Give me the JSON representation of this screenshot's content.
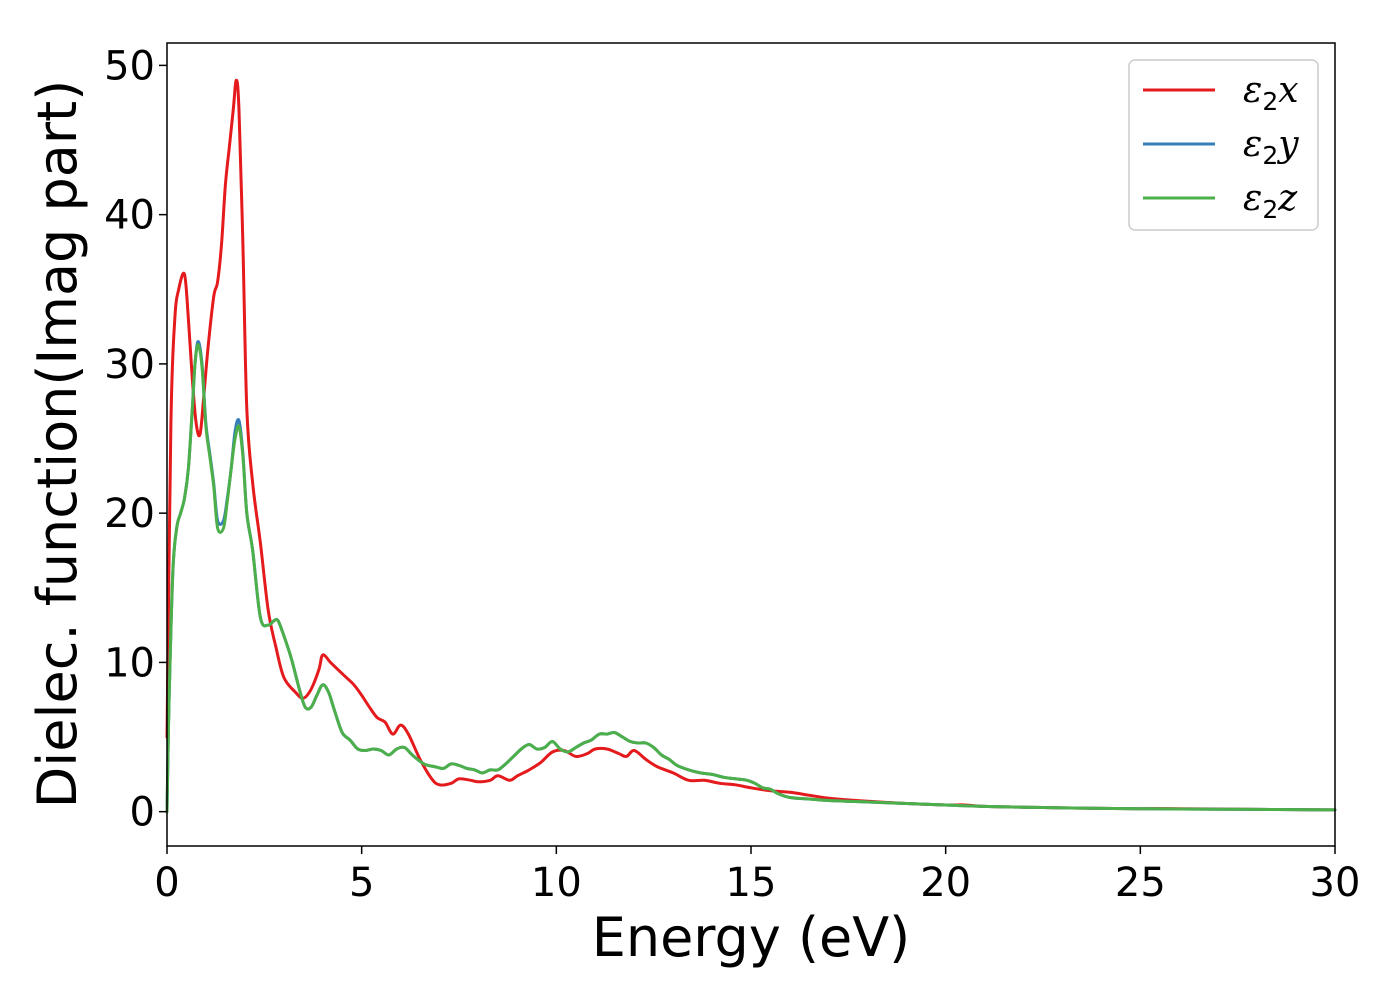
{
  "chart_data": {
    "type": "line",
    "title": "",
    "xlabel": "Energy (eV)",
    "ylabel": "Dielec. function(Imag part)",
    "xlim": [
      0,
      30
    ],
    "ylim": [
      -2.3,
      51.5
    ],
    "xticks": [
      0,
      5,
      10,
      15,
      20,
      25,
      30
    ],
    "xtick_labels": [
      "0",
      "5",
      "10",
      "15",
      "20",
      "25",
      "30"
    ],
    "yticks": [
      0,
      10,
      20,
      30,
      40,
      50
    ],
    "ytick_labels": [
      "0",
      "10",
      "20",
      "30",
      "40",
      "50"
    ],
    "grid": false,
    "legend_position": "top-right",
    "series": [
      {
        "name": "ε2x",
        "name_main": "ε",
        "name_sub": "2",
        "name_tail": "x",
        "color": "#e41a1c",
        "x": [
          0,
          0.1,
          0.2,
          0.3,
          0.45,
          0.55,
          0.65,
          0.75,
          0.85,
          0.95,
          1.05,
          1.2,
          1.3,
          1.4,
          1.5,
          1.6,
          1.7,
          1.78,
          1.85,
          1.95,
          2.05,
          2.2,
          2.4,
          2.6,
          2.8,
          3.0,
          3.3,
          3.5,
          3.7,
          3.9,
          4.0,
          4.2,
          4.4,
          4.6,
          4.8,
          5.0,
          5.2,
          5.4,
          5.6,
          5.8,
          6.0,
          6.2,
          6.5,
          6.8,
          7.0,
          7.3,
          7.5,
          7.8,
          8.0,
          8.3,
          8.5,
          8.8,
          9.0,
          9.3,
          9.6,
          9.9,
          10.2,
          10.5,
          10.8,
          11.0,
          11.3,
          11.6,
          11.8,
          12.0,
          12.3,
          12.6,
          13.0,
          13.4,
          13.8,
          14.2,
          14.6,
          15.0,
          15.5,
          16.0,
          16.5,
          17.0,
          18.0,
          19.0,
          20.0,
          20.5,
          21.0,
          22.0,
          23.0,
          24.0,
          25.0,
          26.0,
          27.0,
          28.0,
          29.0,
          30.0
        ],
        "y": [
          5,
          26,
          33,
          35,
          36,
          33,
          29,
          26,
          25.3,
          28,
          31,
          34.5,
          35.5,
          38,
          42,
          44.5,
          47,
          49,
          47,
          38,
          27,
          22,
          18,
          13.5,
          11,
          9,
          8,
          7.6,
          8.2,
          9.5,
          10.5,
          10,
          9.5,
          9,
          8.5,
          7.8,
          7,
          6.3,
          6,
          5.2,
          5.8,
          5.2,
          3.5,
          2.2,
          1.8,
          1.9,
          2.2,
          2.1,
          2,
          2.1,
          2.4,
          2.1,
          2.4,
          2.8,
          3.3,
          4,
          4.1,
          3.7,
          3.9,
          4.2,
          4.2,
          3.9,
          3.7,
          4.1,
          3.5,
          3,
          2.6,
          2.1,
          2.1,
          1.9,
          1.8,
          1.6,
          1.4,
          1.3,
          1.1,
          0.9,
          0.7,
          0.55,
          0.45,
          0.45,
          0.35,
          0.3,
          0.25,
          0.22,
          0.2,
          0.2,
          0.18,
          0.15,
          0.14,
          0.12
        ]
      },
      {
        "name": "ε2y",
        "name_main": "ε",
        "name_sub": "2",
        "name_tail": "y",
        "color": "#377eb8",
        "x": [
          0,
          0.05,
          0.15,
          0.25,
          0.35,
          0.45,
          0.55,
          0.65,
          0.72,
          0.8,
          0.9,
          1.0,
          1.1,
          1.2,
          1.3,
          1.45,
          1.55,
          1.65,
          1.75,
          1.85,
          1.95,
          2.05,
          2.2,
          2.4,
          2.6,
          2.75,
          2.85,
          3.0,
          3.2,
          3.4,
          3.55,
          3.7,
          3.85,
          4.0,
          4.15,
          4.3,
          4.5,
          4.7,
          4.9,
          5.1,
          5.3,
          5.5,
          5.7,
          5.9,
          6.1,
          6.3,
          6.6,
          6.9,
          7.1,
          7.3,
          7.5,
          7.7,
          7.9,
          8.1,
          8.3,
          8.5,
          8.7,
          8.9,
          9.1,
          9.3,
          9.5,
          9.7,
          9.9,
          10.1,
          10.3,
          10.5,
          10.7,
          10.9,
          11.1,
          11.3,
          11.5,
          11.7,
          11.9,
          12.1,
          12.3,
          12.5,
          12.7,
          12.9,
          13.1,
          13.4,
          13.7,
          14.0,
          14.3,
          14.6,
          14.9,
          15.1,
          15.3,
          15.5,
          15.7,
          16.0,
          16.5,
          17.0,
          18.0,
          19.0,
          20.0,
          21.0,
          22.0,
          23.0,
          24.0,
          25.0,
          26.0,
          27.0,
          28.0,
          29.0,
          30.0
        ],
        "y": [
          0,
          7,
          16,
          19,
          20,
          21,
          23,
          27,
          30,
          31.5,
          30,
          26,
          24,
          22,
          19.5,
          19.5,
          21,
          23,
          25.5,
          26.2,
          24,
          20,
          17.5,
          13,
          12.5,
          12.8,
          12.8,
          11.8,
          10.2,
          8.2,
          7,
          7,
          7.8,
          8.5,
          8,
          6.8,
          5.3,
          4.8,
          4.2,
          4.1,
          4.2,
          4.1,
          3.8,
          4.2,
          4.3,
          3.8,
          3.2,
          3,
          2.9,
          3.2,
          3.1,
          2.9,
          2.8,
          2.6,
          2.8,
          2.8,
          3.2,
          3.7,
          4.2,
          4.5,
          4.2,
          4.3,
          4.7,
          4.2,
          4.0,
          4.3,
          4.6,
          4.8,
          5.2,
          5.2,
          5.3,
          5.0,
          4.7,
          4.6,
          4.6,
          4.3,
          3.8,
          3.5,
          3.1,
          2.8,
          2.6,
          2.5,
          2.3,
          2.2,
          2.1,
          1.9,
          1.6,
          1.5,
          1.2,
          0.95,
          0.85,
          0.75,
          0.65,
          0.55,
          0.45,
          0.35,
          0.3,
          0.25,
          0.22,
          0.2,
          0.18,
          0.16,
          0.15,
          0.14,
          0.12
        ]
      },
      {
        "name": "ε2z",
        "name_main": "ε",
        "name_sub": "2",
        "name_tail": "z",
        "color": "#4daf4a",
        "x": [
          0,
          0.05,
          0.15,
          0.25,
          0.35,
          0.45,
          0.55,
          0.65,
          0.72,
          0.8,
          0.9,
          1.0,
          1.1,
          1.2,
          1.3,
          1.45,
          1.55,
          1.65,
          1.75,
          1.85,
          1.95,
          2.05,
          2.2,
          2.4,
          2.6,
          2.75,
          2.85,
          3.0,
          3.2,
          3.4,
          3.55,
          3.7,
          3.85,
          4.0,
          4.15,
          4.3,
          4.5,
          4.7,
          4.9,
          5.1,
          5.3,
          5.5,
          5.7,
          5.9,
          6.1,
          6.3,
          6.6,
          6.9,
          7.1,
          7.3,
          7.5,
          7.7,
          7.9,
          8.1,
          8.3,
          8.5,
          8.7,
          8.9,
          9.1,
          9.3,
          9.5,
          9.7,
          9.9,
          10.1,
          10.3,
          10.5,
          10.7,
          10.9,
          11.1,
          11.3,
          11.5,
          11.7,
          11.9,
          12.1,
          12.3,
          12.5,
          12.7,
          12.9,
          13.1,
          13.4,
          13.7,
          14.0,
          14.3,
          14.6,
          14.9,
          15.1,
          15.3,
          15.5,
          15.7,
          16.0,
          16.5,
          17.0,
          18.0,
          19.0,
          20.0,
          21.0,
          22.0,
          23.0,
          24.0,
          25.0,
          26.0,
          27.0,
          28.0,
          29.0,
          30.0
        ],
        "y": [
          0,
          7,
          16,
          19,
          20,
          21,
          23,
          27,
          30,
          31.3,
          29.8,
          25.8,
          23.8,
          21.8,
          19,
          19,
          20.8,
          23,
          25,
          25.8,
          23.8,
          20,
          17.5,
          13,
          12.5,
          12.8,
          12.8,
          11.8,
          10.2,
          8.2,
          7,
          7,
          7.8,
          8.5,
          8,
          6.8,
          5.3,
          4.8,
          4.2,
          4.1,
          4.2,
          4.1,
          3.8,
          4.2,
          4.3,
          3.8,
          3.2,
          3,
          2.9,
          3.2,
          3.1,
          2.9,
          2.8,
          2.6,
          2.8,
          2.8,
          3.2,
          3.7,
          4.2,
          4.5,
          4.2,
          4.3,
          4.7,
          4.2,
          4.0,
          4.3,
          4.6,
          4.8,
          5.2,
          5.2,
          5.3,
          5.0,
          4.7,
          4.6,
          4.6,
          4.3,
          3.8,
          3.5,
          3.1,
          2.8,
          2.6,
          2.5,
          2.3,
          2.2,
          2.1,
          1.9,
          1.6,
          1.5,
          1.2,
          0.95,
          0.85,
          0.75,
          0.65,
          0.55,
          0.45,
          0.35,
          0.3,
          0.25,
          0.22,
          0.2,
          0.18,
          0.16,
          0.15,
          0.14,
          0.12
        ]
      }
    ]
  }
}
